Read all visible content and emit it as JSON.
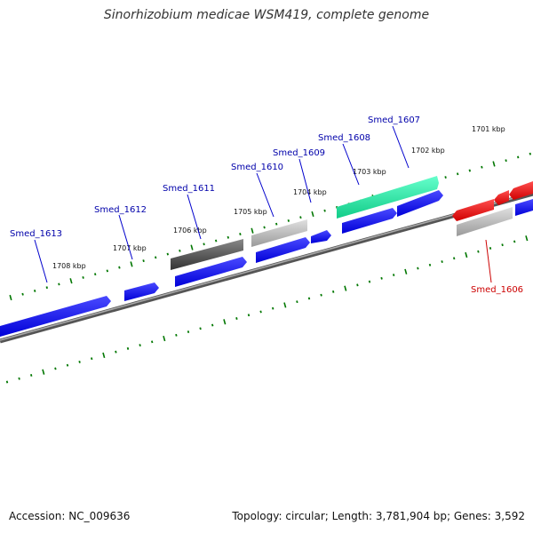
{
  "title": "Sinorhizobium medicae WSM419, complete genome",
  "footer": {
    "accession": "Accession: NC_009636",
    "summary": "Topology: circular; Length: 3,781,904 bp; Genes: 3,592"
  },
  "colors": {
    "forward_gene": "#0000ff",
    "reverse_gene": "#ff0000",
    "highlight_gene": "#22ee99",
    "dark_gene": "#555555",
    "light_gene": "#b8b8b8",
    "ticks": "#007700",
    "backbone": "#777777",
    "label_forward": "#0000aa",
    "label_reverse": "#cc0000"
  },
  "kbp_ticks": [
    "1708 kbp",
    "1707 kbp",
    "1706 kbp",
    "1705 kbp",
    "1704 kbp",
    "1703 kbp",
    "1702 kbp",
    "1701 kbp"
  ],
  "gene_labels": [
    {
      "name": "Smed_1613",
      "strand": "forward"
    },
    {
      "name": "Smed_1612",
      "strand": "forward"
    },
    {
      "name": "Smed_1611",
      "strand": "forward"
    },
    {
      "name": "Smed_1610",
      "strand": "forward"
    },
    {
      "name": "Smed_1609",
      "strand": "forward"
    },
    {
      "name": "Smed_1608",
      "strand": "forward"
    },
    {
      "name": "Smed_1607",
      "strand": "forward"
    },
    {
      "name": "Smed_1606",
      "strand": "reverse"
    }
  ]
}
